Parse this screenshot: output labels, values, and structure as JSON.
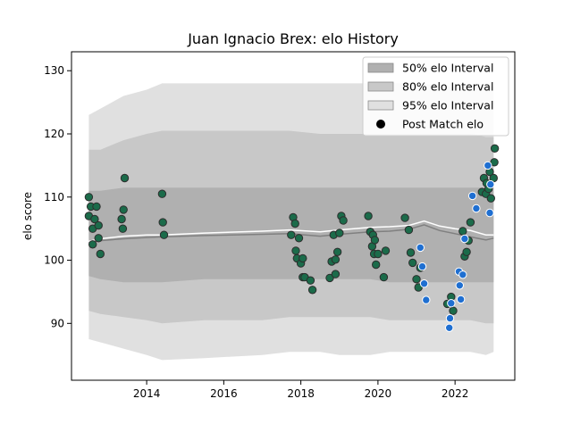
{
  "chart_data": {
    "type": "scatter",
    "title": "Juan Ignacio Brex: elo History",
    "xlabel": "",
    "ylabel": "elo score",
    "xlim": [
      2012.05,
      2023.55
    ],
    "ylim": [
      81.0,
      133.0
    ],
    "x_ticks": [
      2014,
      2016,
      2018,
      2020,
      2022
    ],
    "y_ticks": [
      90,
      100,
      110,
      120,
      130
    ],
    "grid": false,
    "legend_position": "top-right",
    "legend": [
      {
        "label": "50% elo Interval",
        "kind": "band",
        "color": "#b0b0b0"
      },
      {
        "label": "80% elo Interval",
        "kind": "band",
        "color": "#c8c8c8"
      },
      {
        "label": "95% elo Interval",
        "kind": "band",
        "color": "#e0e0e0"
      },
      {
        "label": "Post Match elo",
        "kind": "marker",
        "color": "#000000"
      }
    ],
    "colors": {
      "band50": "#b0b0b0",
      "band80": "#c8c8c8",
      "band95": "#e0e0e0",
      "mean_line": "#ffffff",
      "median_line": "#808080",
      "win_marker": "#1b6b4a",
      "loss_marker": "#1f6fd1",
      "marker_edge_win": "#2d2d2d",
      "marker_edge_loss": "#ffffff"
    },
    "bands": {
      "x": [
        2012.5,
        2012.8,
        2013.4,
        2014.0,
        2014.4,
        2015.5,
        2017.0,
        2017.7,
        2018.5,
        2019.0,
        2019.8,
        2020.3,
        2020.8,
        2021.2,
        2021.6,
        2022.0,
        2022.4,
        2022.8,
        2023.0
      ],
      "p95_low": [
        87.5,
        87.0,
        86.0,
        85.0,
        84.2,
        84.5,
        85.0,
        85.5,
        85.5,
        85.0,
        85.0,
        85.5,
        85.5,
        85.5,
        85.5,
        85.5,
        85.5,
        85.0,
        85.5
      ],
      "p95_high": [
        123.0,
        124.0,
        126.0,
        127.0,
        128.0,
        128.0,
        128.0,
        128.0,
        128.0,
        128.0,
        128.0,
        128.0,
        128.0,
        128.0,
        127.5,
        127.5,
        127.5,
        127.5,
        127.5
      ],
      "p80_low": [
        92.0,
        91.5,
        91.0,
        90.5,
        90.0,
        90.5,
        90.5,
        91.0,
        91.0,
        91.0,
        91.0,
        90.5,
        90.5,
        90.5,
        90.5,
        90.5,
        90.5,
        90.0,
        90.0
      ],
      "p80_high": [
        117.5,
        117.5,
        119.0,
        120.0,
        120.5,
        120.5,
        120.5,
        120.5,
        120.0,
        120.0,
        120.0,
        120.0,
        120.0,
        120.0,
        120.0,
        120.0,
        120.0,
        119.5,
        119.5
      ],
      "p25": [
        97.5,
        97.0,
        96.5,
        96.5,
        96.5,
        97.0,
        97.0,
        97.0,
        97.0,
        97.0,
        97.0,
        96.5,
        96.5,
        96.5,
        96.5,
        96.5,
        96.5,
        96.5,
        96.5
      ],
      "p75": [
        111.0,
        111.0,
        111.5,
        111.5,
        111.5,
        111.5,
        111.5,
        111.5,
        111.5,
        111.5,
        111.5,
        111.5,
        111.5,
        111.5,
        111.5,
        111.5,
        111.5,
        111.5,
        111.5
      ],
      "mean": [
        103.0,
        103.4,
        103.8,
        104.0,
        104.0,
        104.3,
        104.6,
        104.8,
        104.5,
        104.8,
        105.2,
        105.3,
        105.5,
        106.2,
        105.4,
        105.0,
        104.7,
        104.0,
        104.0
      ],
      "median": [
        102.8,
        103.1,
        103.4,
        103.6,
        103.7,
        103.9,
        104.1,
        104.2,
        103.8,
        104.1,
        104.5,
        104.6,
        104.9,
        105.6,
        104.7,
        104.2,
        103.7,
        103.2,
        103.5
      ]
    },
    "points_win": [
      [
        2012.5,
        110.0
      ],
      [
        2012.5,
        107.0
      ],
      [
        2012.55,
        108.5
      ],
      [
        2012.6,
        105.0
      ],
      [
        2012.6,
        102.5
      ],
      [
        2012.65,
        106.5
      ],
      [
        2012.7,
        108.5
      ],
      [
        2012.75,
        105.5
      ],
      [
        2012.75,
        103.5
      ],
      [
        2012.8,
        101.0
      ],
      [
        2013.35,
        106.5
      ],
      [
        2013.38,
        105.0
      ],
      [
        2013.4,
        108.0
      ],
      [
        2013.43,
        113.0
      ],
      [
        2014.4,
        110.5
      ],
      [
        2014.42,
        106.0
      ],
      [
        2014.45,
        104.0
      ],
      [
        2017.75,
        104.0
      ],
      [
        2017.8,
        106.8
      ],
      [
        2017.85,
        105.8
      ],
      [
        2017.87,
        101.5
      ],
      [
        2017.9,
        100.3
      ],
      [
        2017.95,
        103.5
      ],
      [
        2018.0,
        99.5
      ],
      [
        2018.05,
        100.3
      ],
      [
        2018.05,
        97.3
      ],
      [
        2018.1,
        97.3
      ],
      [
        2018.25,
        96.8
      ],
      [
        2018.3,
        95.3
      ],
      [
        2018.75,
        97.2
      ],
      [
        2018.8,
        99.8
      ],
      [
        2018.85,
        104.0
      ],
      [
        2018.9,
        97.8
      ],
      [
        2018.9,
        100.1
      ],
      [
        2018.95,
        101.3
      ],
      [
        2019.0,
        104.3
      ],
      [
        2019.05,
        107.0
      ],
      [
        2019.1,
        106.3
      ],
      [
        2019.75,
        107.0
      ],
      [
        2019.8,
        104.5
      ],
      [
        2019.85,
        102.2
      ],
      [
        2019.87,
        104.0
      ],
      [
        2019.9,
        101.0
      ],
      [
        2019.92,
        103.2
      ],
      [
        2019.95,
        99.3
      ],
      [
        2020.0,
        101.0
      ],
      [
        2020.15,
        97.3
      ],
      [
        2020.2,
        101.5
      ],
      [
        2020.7,
        106.7
      ],
      [
        2020.8,
        104.8
      ],
      [
        2020.85,
        101.2
      ],
      [
        2020.9,
        99.6
      ],
      [
        2021.0,
        97.0
      ],
      [
        2021.05,
        95.7
      ],
      [
        2021.1,
        98.8
      ],
      [
        2021.8,
        93.1
      ],
      [
        2021.9,
        94.2
      ],
      [
        2021.95,
        92.0
      ],
      [
        2022.2,
        104.6
      ],
      [
        2022.25,
        100.6
      ],
      [
        2022.3,
        101.3
      ],
      [
        2022.35,
        103.1
      ],
      [
        2022.4,
        106.0
      ],
      [
        2022.7,
        110.8
      ],
      [
        2022.75,
        113.0
      ],
      [
        2022.8,
        110.5
      ],
      [
        2022.82,
        112.2
      ],
      [
        2022.87,
        111.3
      ],
      [
        2022.9,
        114.0
      ],
      [
        2022.93,
        109.8
      ],
      [
        2023.0,
        113.0
      ],
      [
        2023.02,
        115.5
      ],
      [
        2023.03,
        117.7
      ]
    ],
    "points_loss": [
      [
        2021.1,
        102.0
      ],
      [
        2021.15,
        99.0
      ],
      [
        2021.2,
        96.3
      ],
      [
        2021.25,
        93.7
      ],
      [
        2021.85,
        89.3
      ],
      [
        2021.87,
        90.8
      ],
      [
        2021.9,
        93.2
      ],
      [
        2022.1,
        98.2
      ],
      [
        2022.12,
        96.0
      ],
      [
        2022.15,
        93.8
      ],
      [
        2022.2,
        97.7
      ],
      [
        2022.25,
        103.4
      ],
      [
        2022.45,
        110.2
      ],
      [
        2022.55,
        108.2
      ],
      [
        2022.85,
        115.0
      ],
      [
        2022.9,
        107.5
      ],
      [
        2022.92,
        112.0
      ]
    ]
  }
}
